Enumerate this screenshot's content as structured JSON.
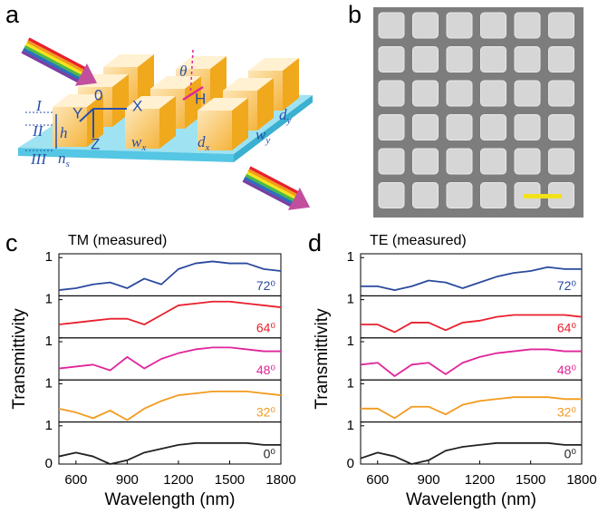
{
  "panel_a": {
    "letter": "a",
    "labels": [
      "I",
      "II",
      "III",
      "h",
      "0",
      "X",
      "Y",
      "Z",
      "θ",
      "H"
    ],
    "sub_labels": [
      {
        "text": "w",
        "sub": "x"
      },
      {
        "text": "d",
        "sub": "x"
      },
      {
        "text": "w",
        "sub": "y"
      },
      {
        "text": "d",
        "sub": "y"
      },
      {
        "text": "n",
        "sub": "s"
      }
    ]
  },
  "panel_b": {
    "letter": "b"
  },
  "chart_data": [
    {
      "type": "line",
      "panel": "c",
      "title": "TM (measured)",
      "x_label": "Wavelength (nm)",
      "y_label": "Transmittivity",
      "x": [
        500,
        600,
        700,
        800,
        900,
        1000,
        1100,
        1200,
        1300,
        1400,
        1500,
        1600,
        1700,
        1800
      ],
      "xlim": [
        500,
        1800
      ],
      "xticks": [
        600,
        900,
        1200,
        1500,
        1800
      ],
      "ylim": [
        0,
        1.1
      ],
      "yticks": [
        0,
        1
      ],
      "series": [
        {
          "name": "72⁰",
          "color": "#2b4a9e",
          "values": [
            0.15,
            0.2,
            0.3,
            0.35,
            0.2,
            0.45,
            0.3,
            0.7,
            0.85,
            0.9,
            0.85,
            0.85,
            0.7,
            0.65
          ]
        },
        {
          "name": "64⁰",
          "color": "#e8202e",
          "values": [
            0.35,
            0.4,
            0.45,
            0.5,
            0.5,
            0.35,
            0.6,
            0.85,
            0.9,
            0.95,
            0.95,
            0.9,
            0.85,
            0.8
          ]
        },
        {
          "name": "48⁰",
          "color": "#e0259a",
          "values": [
            0.3,
            0.35,
            0.4,
            0.25,
            0.6,
            0.3,
            0.55,
            0.7,
            0.8,
            0.85,
            0.85,
            0.8,
            0.75,
            0.75
          ]
        },
        {
          "name": "32⁰",
          "color": "#f39a1e",
          "values": [
            0.35,
            0.25,
            0.1,
            0.3,
            0.05,
            0.35,
            0.55,
            0.7,
            0.75,
            0.8,
            0.8,
            0.8,
            0.75,
            0.7
          ]
        },
        {
          "name": "0⁰",
          "color": "#222222",
          "values": [
            0.2,
            0.3,
            0.2,
            0.0,
            0.1,
            0.3,
            0.4,
            0.5,
            0.55,
            0.55,
            0.55,
            0.55,
            0.5,
            0.5
          ]
        }
      ]
    },
    {
      "type": "line",
      "panel": "d",
      "title": "TE (measured)",
      "x_label": "Wavelength (nm)",
      "y_label": "Transmittivity",
      "x": [
        500,
        600,
        700,
        800,
        900,
        1000,
        1100,
        1200,
        1300,
        1400,
        1500,
        1600,
        1700,
        1800
      ],
      "xlim": [
        500,
        1800
      ],
      "xticks": [
        600,
        900,
        1200,
        1500,
        1800
      ],
      "ylim": [
        0,
        1.1
      ],
      "yticks": [
        0,
        1
      ],
      "series": [
        {
          "name": "72⁰",
          "color": "#2b4a9e",
          "values": [
            0.25,
            0.25,
            0.15,
            0.25,
            0.4,
            0.35,
            0.2,
            0.35,
            0.5,
            0.6,
            0.65,
            0.75,
            0.7,
            0.7
          ]
        },
        {
          "name": "64⁰",
          "color": "#e8202e",
          "values": [
            0.35,
            0.35,
            0.15,
            0.4,
            0.4,
            0.2,
            0.4,
            0.45,
            0.55,
            0.6,
            0.6,
            0.6,
            0.6,
            0.55
          ]
        },
        {
          "name": "48⁰",
          "color": "#e0259a",
          "values": [
            0.4,
            0.45,
            0.1,
            0.4,
            0.45,
            0.15,
            0.45,
            0.6,
            0.7,
            0.75,
            0.8,
            0.8,
            0.75,
            0.75
          ]
        },
        {
          "name": "32⁰",
          "color": "#f39a1e",
          "values": [
            0.35,
            0.35,
            0.1,
            0.4,
            0.4,
            0.2,
            0.45,
            0.55,
            0.6,
            0.65,
            0.65,
            0.65,
            0.6,
            0.6
          ]
        },
        {
          "name": "0⁰",
          "color": "#222222",
          "values": [
            0.15,
            0.3,
            0.2,
            0.0,
            0.1,
            0.35,
            0.45,
            0.5,
            0.55,
            0.55,
            0.55,
            0.55,
            0.5,
            0.5
          ]
        }
      ]
    }
  ]
}
